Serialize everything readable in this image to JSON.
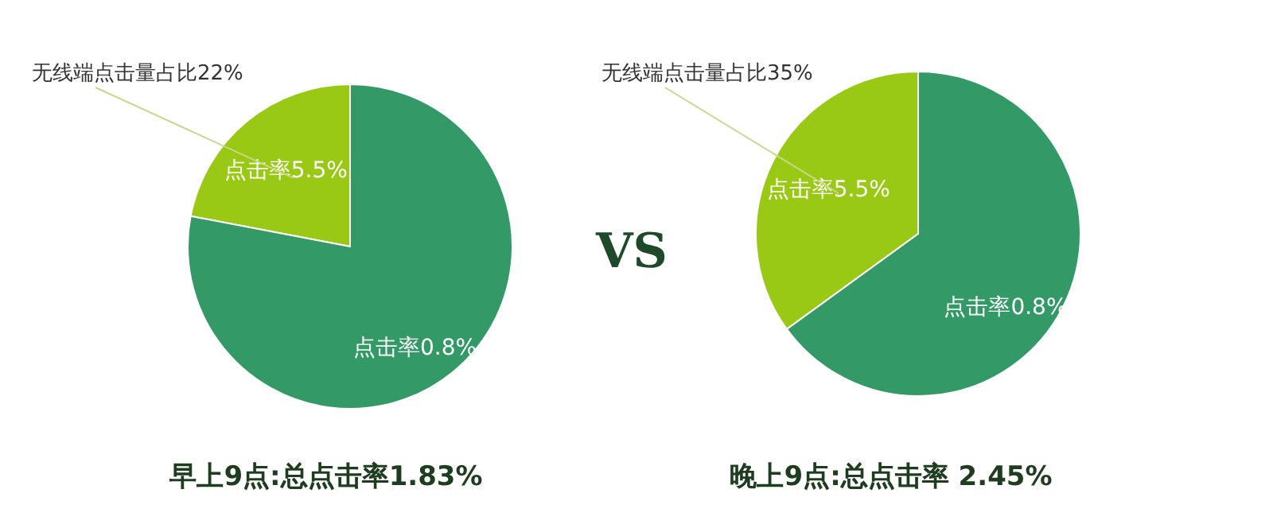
{
  "chart_data": [
    {
      "type": "pie",
      "title": "早上9点:总点击率1.83%",
      "categories": [
        "点击率5.5%",
        "点击率0.8%"
      ],
      "values": [
        22,
        78
      ],
      "colors": [
        "#99c914",
        "#339966"
      ],
      "annotations": [
        "无线端点击量占比22%",
        "VS"
      ]
    },
    {
      "type": "pie",
      "title": "晚上9点:总点击率 2.45%",
      "categories": [
        "点击率5.5%",
        "点击率0.8%"
      ],
      "values": [
        35,
        65
      ],
      "colors": [
        "#99c914",
        "#339966"
      ],
      "annotations": [
        "无线端点击量占比35%"
      ]
    }
  ]
}
